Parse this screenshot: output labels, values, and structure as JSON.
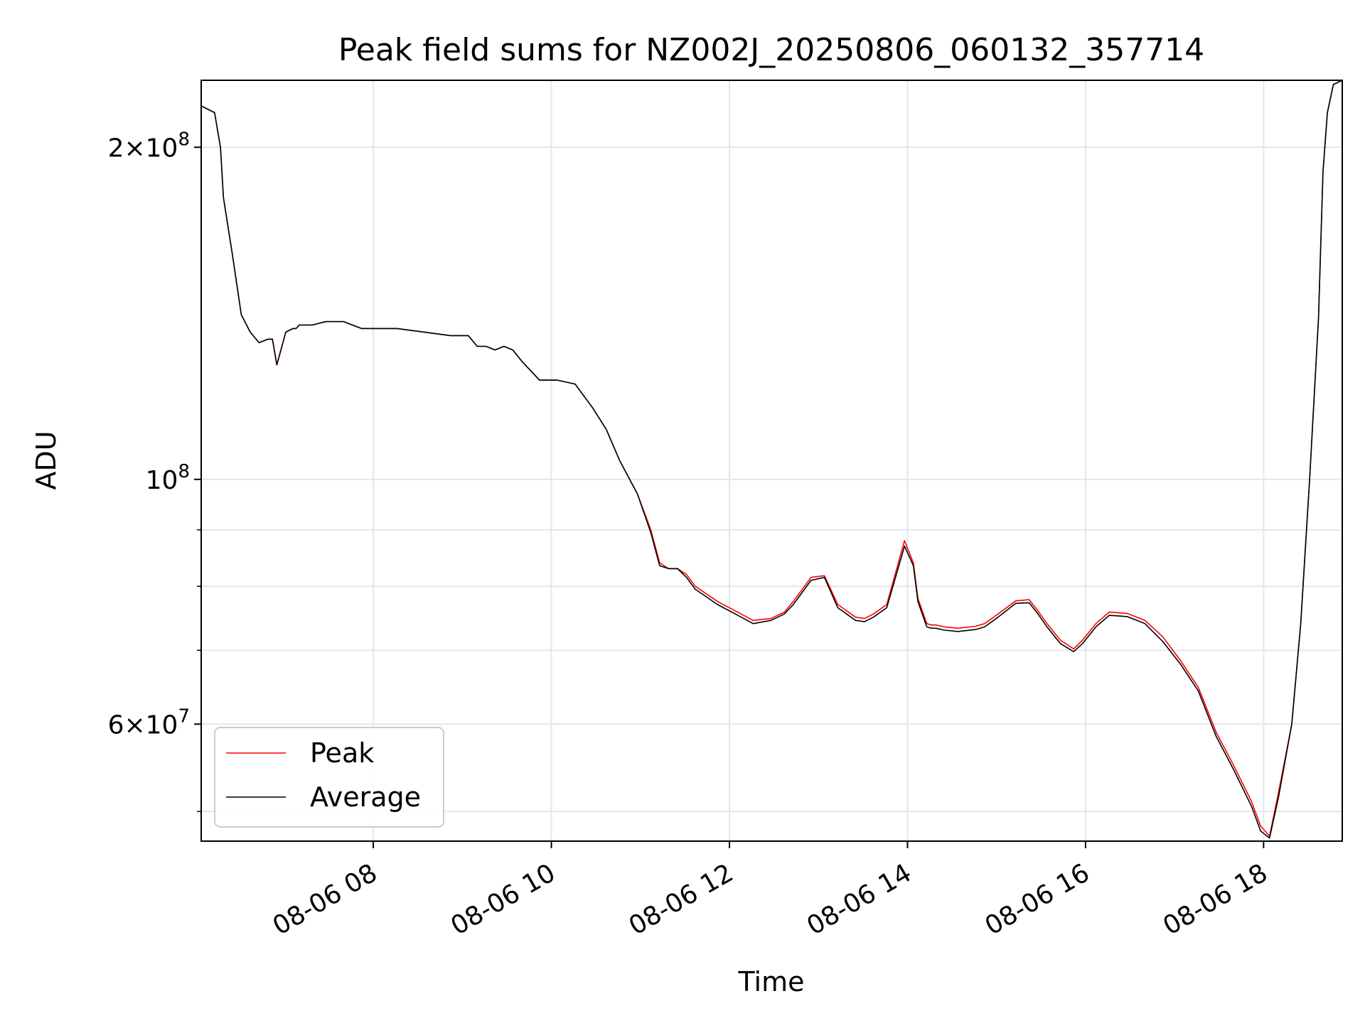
{
  "chart_data": {
    "type": "line",
    "title": "Peak field sums for NZ002J_20250806_060132_357714",
    "xlabel": "Time",
    "ylabel": "ADU",
    "y_scale": "log",
    "xlim": [
      "2025-08-06 06:04",
      "2025-08-06 18:53"
    ],
    "ylim": [
      47000000,
      230000000
    ],
    "x_tick_values": [
      "2025-08-06 08:00",
      "2025-08-06 10:00",
      "2025-08-06 12:00",
      "2025-08-06 14:00",
      "2025-08-06 16:00",
      "2025-08-06 18:00"
    ],
    "x_tick_labels": [
      "08-06 08",
      "08-06 10",
      "08-06 12",
      "08-06 14",
      "08-06 16",
      "08-06 18"
    ],
    "y_major_ticks": [
      {
        "value": 200000000,
        "mant": "2",
        "exp": "8"
      },
      {
        "value": 100000000,
        "mant": "",
        "exp": "8"
      },
      {
        "value": 60000000,
        "mant": "6",
        "exp": "7"
      }
    ],
    "y_minor_gridlines": [
      50000000,
      70000000,
      80000000,
      90000000
    ],
    "grid": true,
    "legend_position": "lower-left",
    "series": [
      {
        "name": "Peak",
        "color": "#ff0000",
        "x": [
          "2025-08-06 06:04",
          "2025-08-06 06:13",
          "2025-08-06 06:17",
          "2025-08-06 06:19",
          "2025-08-06 06:25",
          "2025-08-06 06:31",
          "2025-08-06 06:37",
          "2025-08-06 06:43",
          "2025-08-06 06:49",
          "2025-08-06 06:52",
          "2025-08-06 06:55",
          "2025-08-06 07:01",
          "2025-08-06 07:06",
          "2025-08-06 07:08",
          "2025-08-06 07:10",
          "2025-08-06 07:13",
          "2025-08-06 07:19",
          "2025-08-06 07:28",
          "2025-08-06 07:40",
          "2025-08-06 07:52",
          "2025-08-06 07:58",
          "2025-08-06 08:04",
          "2025-08-06 08:16",
          "2025-08-06 08:34",
          "2025-08-06 08:52",
          "2025-08-06 09:04",
          "2025-08-06 09:10",
          "2025-08-06 09:16",
          "2025-08-06 09:22",
          "2025-08-06 09:28",
          "2025-08-06 09:34",
          "2025-08-06 09:40",
          "2025-08-06 09:52",
          "2025-08-06 10:04",
          "2025-08-06 10:16",
          "2025-08-06 10:28",
          "2025-08-06 10:37",
          "2025-08-06 10:46",
          "2025-08-06 10:58",
          "2025-08-06 11:07",
          "2025-08-06 11:13",
          "2025-08-06 11:19",
          "2025-08-06 11:25",
          "2025-08-06 11:31",
          "2025-08-06 11:37",
          "2025-08-06 11:43",
          "2025-08-06 11:52",
          "2025-08-06 12:04",
          "2025-08-06 12:16",
          "2025-08-06 12:28",
          "2025-08-06 12:37",
          "2025-08-06 12:43",
          "2025-08-06 12:55",
          "2025-08-06 13:04",
          "2025-08-06 13:13",
          "2025-08-06 13:19",
          "2025-08-06 13:25",
          "2025-08-06 13:31",
          "2025-08-06 13:37",
          "2025-08-06 13:46",
          "2025-08-06 13:58",
          "2025-08-06 14:04",
          "2025-08-06 14:07",
          "2025-08-06 14:10",
          "2025-08-06 14:13",
          "2025-08-06 14:16",
          "2025-08-06 14:19",
          "2025-08-06 14:25",
          "2025-08-06 14:34",
          "2025-08-06 14:46",
          "2025-08-06 14:52",
          "2025-08-06 15:01",
          "2025-08-06 15:13",
          "2025-08-06 15:22",
          "2025-08-06 15:28",
          "2025-08-06 15:34",
          "2025-08-06 15:43",
          "2025-08-06 15:52",
          "2025-08-06 15:58",
          "2025-08-06 16:07",
          "2025-08-06 16:16",
          "2025-08-06 16:28",
          "2025-08-06 16:40",
          "2025-08-06 16:52",
          "2025-08-06 17:04",
          "2025-08-06 17:16",
          "2025-08-06 17:28",
          "2025-08-06 17:40",
          "2025-08-06 17:52",
          "2025-08-06 17:58",
          "2025-08-06 18:04",
          "2025-08-06 18:10",
          "2025-08-06 18:19",
          "2025-08-06 18:25",
          "2025-08-06 18:31",
          "2025-08-06 18:37",
          "2025-08-06 18:40",
          "2025-08-06 18:43",
          "2025-08-06 18:47",
          "2025-08-06 18:53"
        ],
        "y": [
          218000000,
          215000000,
          200000000,
          180000000,
          160000000,
          141000000,
          136000000,
          133000000,
          134000000,
          134000000,
          127000000,
          136000000,
          137000000,
          137000000,
          138000000,
          138000000,
          138000000,
          139000000,
          139000000,
          137000000,
          137000000,
          137000000,
          137000000,
          136000000,
          135000000,
          135000000,
          132000000,
          132000000,
          131000000,
          132000000,
          131000000,
          128000000,
          123000000,
          123000000,
          122000000,
          116000000,
          111000000,
          104000000,
          97000000,
          90000000,
          84000000,
          83000000,
          83000000,
          82000000,
          80000000,
          79000000,
          77500000,
          76000000,
          74500000,
          74800000,
          75800000,
          77500000,
          81500000,
          81800000,
          77000000,
          76000000,
          75000000,
          74800000,
          75500000,
          77000000,
          88000000,
          84000000,
          78000000,
          76000000,
          74000000,
          73800000,
          73800000,
          73500000,
          73300000,
          73600000,
          74000000,
          75500000,
          77600000,
          77800000,
          76000000,
          74000000,
          71500000,
          70200000,
          71500000,
          74000000,
          75800000,
          75600000,
          74500000,
          72000000,
          68500000,
          64800000,
          59000000,
          55000000,
          51000000,
          48500000,
          47500000,
          52000000,
          60000000,
          74000000,
          100000000,
          140000000,
          190000000,
          215000000,
          228000000,
          230000000
        ]
      },
      {
        "name": "Average",
        "color": "#000000",
        "x": [
          "2025-08-06 06:04",
          "2025-08-06 06:13",
          "2025-08-06 06:17",
          "2025-08-06 06:19",
          "2025-08-06 06:25",
          "2025-08-06 06:31",
          "2025-08-06 06:37",
          "2025-08-06 06:43",
          "2025-08-06 06:49",
          "2025-08-06 06:52",
          "2025-08-06 06:55",
          "2025-08-06 07:01",
          "2025-08-06 07:06",
          "2025-08-06 07:08",
          "2025-08-06 07:10",
          "2025-08-06 07:13",
          "2025-08-06 07:19",
          "2025-08-06 07:28",
          "2025-08-06 07:40",
          "2025-08-06 07:52",
          "2025-08-06 07:58",
          "2025-08-06 08:04",
          "2025-08-06 08:16",
          "2025-08-06 08:34",
          "2025-08-06 08:52",
          "2025-08-06 09:04",
          "2025-08-06 09:10",
          "2025-08-06 09:16",
          "2025-08-06 09:22",
          "2025-08-06 09:28",
          "2025-08-06 09:34",
          "2025-08-06 09:40",
          "2025-08-06 09:52",
          "2025-08-06 10:04",
          "2025-08-06 10:16",
          "2025-08-06 10:28",
          "2025-08-06 10:37",
          "2025-08-06 10:46",
          "2025-08-06 10:58",
          "2025-08-06 11:07",
          "2025-08-06 11:13",
          "2025-08-06 11:19",
          "2025-08-06 11:25",
          "2025-08-06 11:31",
          "2025-08-06 11:37",
          "2025-08-06 11:43",
          "2025-08-06 11:52",
          "2025-08-06 12:04",
          "2025-08-06 12:16",
          "2025-08-06 12:28",
          "2025-08-06 12:37",
          "2025-08-06 12:43",
          "2025-08-06 12:55",
          "2025-08-06 13:04",
          "2025-08-06 13:13",
          "2025-08-06 13:19",
          "2025-08-06 13:25",
          "2025-08-06 13:31",
          "2025-08-06 13:37",
          "2025-08-06 13:46",
          "2025-08-06 13:58",
          "2025-08-06 14:04",
          "2025-08-06 14:07",
          "2025-08-06 14:10",
          "2025-08-06 14:13",
          "2025-08-06 14:16",
          "2025-08-06 14:19",
          "2025-08-06 14:25",
          "2025-08-06 14:34",
          "2025-08-06 14:46",
          "2025-08-06 14:52",
          "2025-08-06 15:01",
          "2025-08-06 15:13",
          "2025-08-06 15:22",
          "2025-08-06 15:28",
          "2025-08-06 15:34",
          "2025-08-06 15:43",
          "2025-08-06 15:52",
          "2025-08-06 15:58",
          "2025-08-06 16:07",
          "2025-08-06 16:16",
          "2025-08-06 16:28",
          "2025-08-06 16:40",
          "2025-08-06 16:52",
          "2025-08-06 17:04",
          "2025-08-06 17:16",
          "2025-08-06 17:28",
          "2025-08-06 17:40",
          "2025-08-06 17:52",
          "2025-08-06 17:58",
          "2025-08-06 18:04",
          "2025-08-06 18:10",
          "2025-08-06 18:19",
          "2025-08-06 18:25",
          "2025-08-06 18:31",
          "2025-08-06 18:37",
          "2025-08-06 18:40",
          "2025-08-06 18:43",
          "2025-08-06 18:47",
          "2025-08-06 18:53"
        ],
        "y": [
          218000000,
          215000000,
          200000000,
          180000000,
          160000000,
          141000000,
          136000000,
          133000000,
          134000000,
          134000000,
          127000000,
          136000000,
          137000000,
          137000000,
          138000000,
          138000000,
          138000000,
          139000000,
          139000000,
          137000000,
          137000000,
          137000000,
          137000000,
          136000000,
          135000000,
          135000000,
          132000000,
          132000000,
          131000000,
          132000000,
          131000000,
          128000000,
          123000000,
          123000000,
          122000000,
          116000000,
          111000000,
          104000000,
          97000000,
          89500000,
          83500000,
          83000000,
          83000000,
          81500000,
          79500000,
          78500000,
          77000000,
          75500000,
          74000000,
          74500000,
          75500000,
          77000000,
          81000000,
          81500000,
          76500000,
          75500000,
          74500000,
          74300000,
          75000000,
          76500000,
          87000000,
          83500000,
          77500000,
          75500000,
          73500000,
          73300000,
          73300000,
          73000000,
          72800000,
          73100000,
          73500000,
          75000000,
          77200000,
          77300000,
          75500000,
          73500000,
          71000000,
          69800000,
          71000000,
          73500000,
          75300000,
          75100000,
          74000000,
          71300000,
          68000000,
          64300000,
          58500000,
          54500000,
          50500000,
          48000000,
          47300000,
          51500000,
          60000000,
          74000000,
          100000000,
          140000000,
          190000000,
          215000000,
          228000000,
          230000000
        ]
      }
    ]
  }
}
